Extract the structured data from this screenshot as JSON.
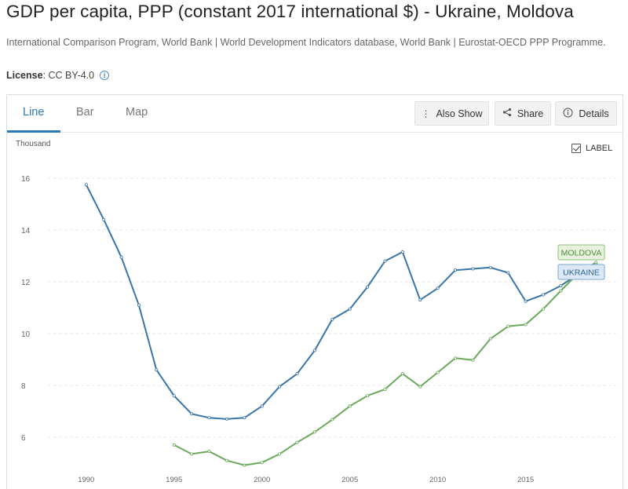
{
  "header": {
    "title": "GDP per capita, PPP (constant 2017 international $) - Ukraine, Moldova",
    "source": "International Comparison Program, World Bank | World Development Indicators database, World Bank | Eurostat-OECD PPP Programme.",
    "license_label": "License",
    "license_value": " : CC BY-4.0",
    "info_icon": "ⓘ"
  },
  "tabs": [
    {
      "label": "Line",
      "active": true
    },
    {
      "label": "Bar",
      "active": false
    },
    {
      "label": "Map",
      "active": false
    }
  ],
  "toolbar": {
    "also_show": "Also Show",
    "share": "Share",
    "details": "Details"
  },
  "chart_controls": {
    "label_toggle": "LABEL",
    "label_checked": true
  },
  "chart_data": {
    "type": "line",
    "title": "",
    "xlabel": "",
    "ylabel": "Thousand",
    "xlim": [
      1985.5,
      2020.6
    ],
    "ylim": [
      4.8,
      16.3
    ],
    "x_ticks": [
      1990,
      1995,
      2000,
      2005,
      2010,
      2015
    ],
    "y_ticks": [
      6,
      8,
      10,
      12,
      14,
      16
    ],
    "grid": true,
    "series": [
      {
        "name": "UKRAINE",
        "color": "#3a75a8",
        "x": [
          1990,
          1991,
          1992,
          1993,
          1994,
          1995,
          1996,
          1997,
          1998,
          1999,
          2000,
          2001,
          2002,
          2003,
          2004,
          2005,
          2006,
          2007,
          2008,
          2009,
          2010,
          2011,
          2012,
          2013,
          2014,
          2015,
          2016,
          2017,
          2018,
          2019
        ],
        "values": [
          15.75,
          14.4,
          12.95,
          11.1,
          8.6,
          7.6,
          6.9,
          6.75,
          6.7,
          6.75,
          7.2,
          7.95,
          8.45,
          9.35,
          10.55,
          10.95,
          11.8,
          12.8,
          13.15,
          11.3,
          11.75,
          12.45,
          12.5,
          12.55,
          12.35,
          11.25,
          11.5,
          11.85,
          12.3,
          12.7
        ]
      },
      {
        "name": "MOLDOVA",
        "color": "#6aa95a",
        "x": [
          1995,
          1996,
          1997,
          1998,
          1999,
          2000,
          2001,
          2002,
          2003,
          2004,
          2005,
          2006,
          2007,
          2008,
          2009,
          2010,
          2011,
          2012,
          2013,
          2014,
          2015,
          2016,
          2017,
          2018,
          2019
        ],
        "values": [
          5.7,
          5.35,
          5.45,
          5.1,
          4.92,
          5.02,
          5.35,
          5.8,
          6.2,
          6.68,
          7.2,
          7.6,
          7.85,
          8.45,
          7.95,
          8.5,
          9.05,
          8.98,
          9.8,
          10.28,
          10.35,
          10.95,
          11.65,
          12.35,
          12.75
        ]
      }
    ],
    "end_labels": [
      "MOLDOVA",
      "UKRAINE"
    ]
  }
}
